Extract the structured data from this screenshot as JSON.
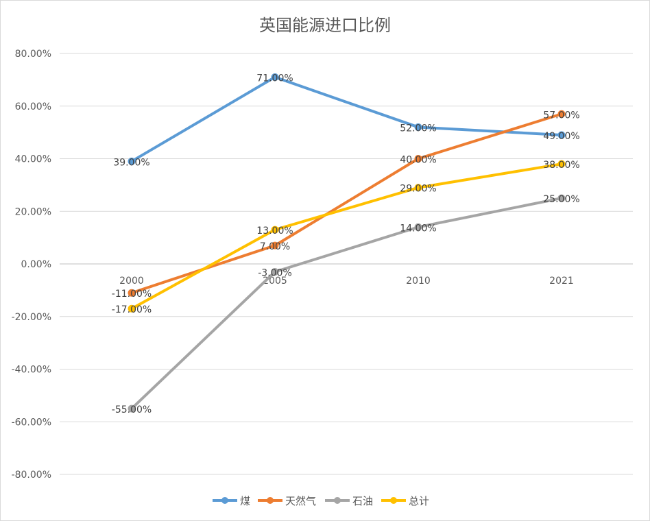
{
  "chart_data": {
    "type": "line",
    "title": "英国能源进口比例",
    "categories": [
      "2000",
      "2005",
      "2010",
      "2021"
    ],
    "y_ticks": [
      "80.00%",
      "60.00%",
      "40.00%",
      "20.00%",
      "0.00%",
      "-20.00%",
      "-40.00%",
      "-60.00%",
      "-80.00%"
    ],
    "ylim": [
      -80,
      80
    ],
    "y_unit": "%",
    "grid": true,
    "legend_position": "bottom",
    "series": [
      {
        "name": "煤",
        "color": "#5b9bd5",
        "values": [
          39,
          71,
          52,
          49
        ],
        "labels": [
          "39.00%",
          "71.00%",
          "52.00%",
          "49.00%"
        ]
      },
      {
        "name": "天然气",
        "color": "#ed7d31",
        "values": [
          -11,
          7,
          40,
          57
        ],
        "labels": [
          "-11.00%",
          "7.00%",
          "40.00%",
          "57.00%"
        ]
      },
      {
        "name": "石油",
        "color": "#a5a5a5",
        "values": [
          -55,
          -3,
          14,
          25
        ],
        "labels": [
          "-55.00%",
          "-3.00%",
          "14.00%",
          "25.00%"
        ]
      },
      {
        "name": "总计",
        "color": "#ffc000",
        "values": [
          -17,
          13,
          29,
          38
        ],
        "labels": [
          "-17.00%",
          "13.00%",
          "29.00%",
          "38.00%"
        ]
      }
    ]
  }
}
